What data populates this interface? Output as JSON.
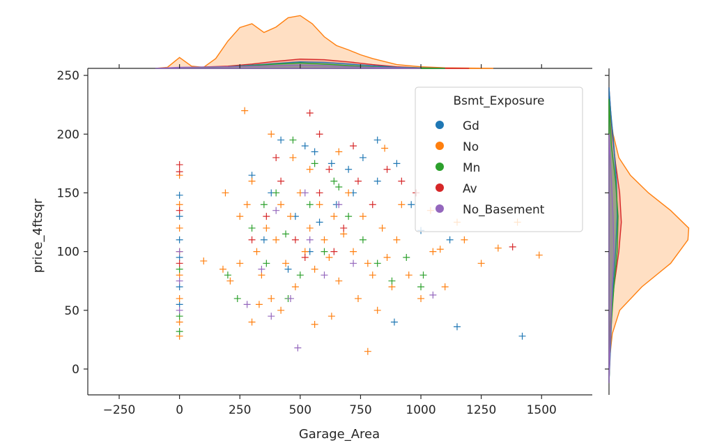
{
  "chart_data": {
    "type": "scatter",
    "subtype": "jointplot",
    "xlabel": "Garage_Area",
    "ylabel": "price_4ftsqr",
    "xlim": [
      -380,
      1710
    ],
    "ylim": [
      -22,
      256
    ],
    "x_ticks": [
      -250,
      0,
      250,
      500,
      750,
      1000,
      1250,
      1500
    ],
    "y_ticks": [
      0,
      50,
      100,
      150,
      200,
      250
    ],
    "marker": "+",
    "grid": false,
    "legend": {
      "title": "Bsmt_Exposure",
      "placement": "upper-right",
      "entries": [
        "Gd",
        "No",
        "Mn",
        "Av",
        "No_Basement"
      ]
    },
    "series": [
      {
        "name": "Gd",
        "color": "#1f77b4",
        "points": [
          [
            0,
            148
          ],
          [
            0,
            130
          ],
          [
            0,
            110
          ],
          [
            0,
            95
          ],
          [
            0,
            70
          ],
          [
            0,
            55
          ],
          [
            420,
            195
          ],
          [
            520,
            190
          ],
          [
            560,
            185
          ],
          [
            630,
            175
          ],
          [
            700,
            170
          ],
          [
            760,
            180
          ],
          [
            820,
            195
          ],
          [
            900,
            175
          ],
          [
            960,
            140
          ],
          [
            1000,
            118
          ],
          [
            1120,
            110
          ],
          [
            1150,
            36
          ],
          [
            1420,
            28
          ],
          [
            890,
            40
          ],
          [
            580,
            125
          ],
          [
            480,
            130
          ],
          [
            380,
            150
          ],
          [
            300,
            165
          ],
          [
            650,
            140
          ],
          [
            720,
            150
          ],
          [
            820,
            160
          ],
          [
            540,
            100
          ],
          [
            450,
            85
          ],
          [
            350,
            110
          ]
        ]
      },
      {
        "name": "No",
        "color": "#ff7f0e",
        "points": [
          [
            0,
            28
          ],
          [
            0,
            40
          ],
          [
            0,
            60
          ],
          [
            0,
            80
          ],
          [
            0,
            100
          ],
          [
            0,
            120
          ],
          [
            0,
            140
          ],
          [
            0,
            165
          ],
          [
            100,
            92
          ],
          [
            190,
            150
          ],
          [
            210,
            75
          ],
          [
            250,
            130
          ],
          [
            270,
            220
          ],
          [
            280,
            140
          ],
          [
            300,
            160
          ],
          [
            320,
            100
          ],
          [
            340,
            80
          ],
          [
            360,
            120
          ],
          [
            380,
            60
          ],
          [
            400,
            110
          ],
          [
            420,
            140
          ],
          [
            440,
            90
          ],
          [
            460,
            130
          ],
          [
            480,
            70
          ],
          [
            500,
            150
          ],
          [
            520,
            100
          ],
          [
            540,
            120
          ],
          [
            560,
            85
          ],
          [
            580,
            140
          ],
          [
            600,
            110
          ],
          [
            620,
            95
          ],
          [
            640,
            130
          ],
          [
            660,
            75
          ],
          [
            680,
            115
          ],
          [
            700,
            150
          ],
          [
            720,
            100
          ],
          [
            740,
            60
          ],
          [
            760,
            130
          ],
          [
            780,
            90
          ],
          [
            800,
            80
          ],
          [
            820,
            50
          ],
          [
            840,
            120
          ],
          [
            860,
            95
          ],
          [
            880,
            70
          ],
          [
            900,
            110
          ],
          [
            920,
            140
          ],
          [
            950,
            80
          ],
          [
            1000,
            60
          ],
          [
            1050,
            100
          ],
          [
            1100,
            70
          ],
          [
            1150,
            125
          ],
          [
            1180,
            110
          ],
          [
            1250,
            90
          ],
          [
            1320,
            103
          ],
          [
            1400,
            125
          ],
          [
            1490,
            97
          ],
          [
            780,
            15
          ],
          [
            560,
            38
          ],
          [
            540,
            170
          ],
          [
            470,
            180
          ],
          [
            380,
            200
          ],
          [
            660,
            185
          ],
          [
            850,
            188
          ],
          [
            1040,
            135
          ],
          [
            1080,
            102
          ],
          [
            300,
            40
          ],
          [
            420,
            50
          ],
          [
            630,
            45
          ],
          [
            250,
            90
          ],
          [
            180,
            85
          ],
          [
            330,
            55
          ]
        ]
      },
      {
        "name": "Mn",
        "color": "#2ca02c",
        "points": [
          [
            0,
            32
          ],
          [
            0,
            45
          ],
          [
            0,
            85
          ],
          [
            240,
            60
          ],
          [
            300,
            120
          ],
          [
            360,
            90
          ],
          [
            400,
            150
          ],
          [
            440,
            115
          ],
          [
            500,
            80
          ],
          [
            540,
            140
          ],
          [
            600,
            100
          ],
          [
            640,
            160
          ],
          [
            700,
            130
          ],
          [
            760,
            110
          ],
          [
            820,
            90
          ],
          [
            880,
            75
          ],
          [
            940,
            95
          ],
          [
            1000,
            70
          ],
          [
            1010,
            80
          ],
          [
            470,
            195
          ],
          [
            560,
            175
          ],
          [
            660,
            155
          ],
          [
            200,
            80
          ],
          [
            350,
            140
          ],
          [
            450,
            60
          ]
        ]
      },
      {
        "name": "Av",
        "color": "#d62728",
        "points": [
          [
            0,
            174
          ],
          [
            0,
            168
          ],
          [
            0,
            135
          ],
          [
            0,
            90
          ],
          [
            360,
            130
          ],
          [
            420,
            160
          ],
          [
            480,
            110
          ],
          [
            540,
            218
          ],
          [
            580,
            150
          ],
          [
            620,
            170
          ],
          [
            680,
            120
          ],
          [
            740,
            160
          ],
          [
            800,
            140
          ],
          [
            860,
            170
          ],
          [
            920,
            160
          ],
          [
            980,
            150
          ],
          [
            1380,
            104
          ],
          [
            520,
            95
          ],
          [
            640,
            100
          ],
          [
            720,
            190
          ],
          [
            300,
            110
          ],
          [
            400,
            180
          ],
          [
            580,
            200
          ]
        ]
      },
      {
        "name": "No_Basement",
        "color": "#9467bd",
        "points": [
          [
            0,
            50
          ],
          [
            0,
            75
          ],
          [
            0,
            100
          ],
          [
            280,
            55
          ],
          [
            340,
            85
          ],
          [
            400,
            135
          ],
          [
            460,
            60
          ],
          [
            490,
            18
          ],
          [
            540,
            110
          ],
          [
            600,
            80
          ],
          [
            660,
            140
          ],
          [
            720,
            90
          ],
          [
            1050,
            63
          ],
          [
            380,
            45
          ],
          [
            520,
            150
          ]
        ]
      }
    ],
    "top_marginal": {
      "type": "kde",
      "orientation": "x",
      "series": [
        {
          "name": "No",
          "color": "#ff7f0e",
          "points": [
            [
              -100,
              0
            ],
            [
              -50,
              0.02
            ],
            [
              0,
              0.2
            ],
            [
              50,
              0.04
            ],
            [
              100,
              0.02
            ],
            [
              150,
              0.18
            ],
            [
              200,
              0.5
            ],
            [
              250,
              0.75
            ],
            [
              300,
              0.82
            ],
            [
              350,
              0.66
            ],
            [
              400,
              0.76
            ],
            [
              450,
              0.93
            ],
            [
              500,
              0.97
            ],
            [
              550,
              0.82
            ],
            [
              600,
              0.58
            ],
            [
              650,
              0.42
            ],
            [
              700,
              0.34
            ],
            [
              750,
              0.25
            ],
            [
              800,
              0.18
            ],
            [
              900,
              0.07
            ],
            [
              1000,
              0.03
            ],
            [
              1100,
              0.01
            ],
            [
              1300,
              0
            ]
          ]
        },
        {
          "name": "Av",
          "color": "#d62728",
          "points": [
            [
              -100,
              0
            ],
            [
              0,
              0.01
            ],
            [
              200,
              0.04
            ],
            [
              300,
              0.08
            ],
            [
              400,
              0.13
            ],
            [
              500,
              0.17
            ],
            [
              600,
              0.16
            ],
            [
              700,
              0.12
            ],
            [
              800,
              0.07
            ],
            [
              900,
              0.03
            ],
            [
              1000,
              0.01
            ],
            [
              1200,
              0
            ]
          ]
        },
        {
          "name": "Gd",
          "color": "#1f77b4",
          "points": [
            [
              -100,
              0
            ],
            [
              0,
              0.01
            ],
            [
              200,
              0.03
            ],
            [
              300,
              0.06
            ],
            [
              400,
              0.09
            ],
            [
              500,
              0.12
            ],
            [
              600,
              0.11
            ],
            [
              700,
              0.08
            ],
            [
              800,
              0.05
            ],
            [
              900,
              0.02
            ],
            [
              1100,
              0
            ]
          ]
        },
        {
          "name": "Mn",
          "color": "#2ca02c",
          "points": [
            [
              -100,
              0
            ],
            [
              0,
              0.01
            ],
            [
              200,
              0.03
            ],
            [
              300,
              0.05
            ],
            [
              400,
              0.08
            ],
            [
              500,
              0.1
            ],
            [
              600,
              0.08
            ],
            [
              700,
              0.05
            ],
            [
              800,
              0.03
            ],
            [
              900,
              0.01
            ],
            [
              1100,
              0
            ]
          ]
        },
        {
          "name": "No_Basement",
          "color": "#9467bd",
          "points": [
            [
              -100,
              0
            ],
            [
              0,
              0.02
            ],
            [
              200,
              0.03
            ],
            [
              300,
              0.04
            ],
            [
              400,
              0.05
            ],
            [
              500,
              0.06
            ],
            [
              600,
              0.05
            ],
            [
              700,
              0.03
            ],
            [
              800,
              0.02
            ],
            [
              1000,
              0
            ]
          ]
        }
      ]
    },
    "right_marginal": {
      "type": "kde",
      "orientation": "y",
      "series": [
        {
          "name": "No",
          "color": "#ff7f0e",
          "points": [
            [
              -12,
              0
            ],
            [
              10,
              0.01
            ],
            [
              30,
              0.04
            ],
            [
              50,
              0.13
            ],
            [
              70,
              0.4
            ],
            [
              90,
              0.75
            ],
            [
              110,
              0.96
            ],
            [
              120,
              0.97
            ],
            [
              135,
              0.75
            ],
            [
              150,
              0.48
            ],
            [
              165,
              0.26
            ],
            [
              180,
              0.12
            ],
            [
              200,
              0.05
            ],
            [
              220,
              0.01
            ],
            [
              240,
              0
            ]
          ]
        },
        {
          "name": "Av",
          "color": "#d62728",
          "points": [
            [
              -12,
              0
            ],
            [
              40,
              0.02
            ],
            [
              70,
              0.06
            ],
            [
              100,
              0.12
            ],
            [
              125,
              0.15
            ],
            [
              150,
              0.13
            ],
            [
              175,
              0.08
            ],
            [
              200,
              0.04
            ],
            [
              230,
              0.01
            ],
            [
              240,
              0
            ]
          ]
        },
        {
          "name": "Gd",
          "color": "#1f77b4",
          "points": [
            [
              -12,
              0
            ],
            [
              20,
              0.02
            ],
            [
              60,
              0.04
            ],
            [
              100,
              0.08
            ],
            [
              130,
              0.1
            ],
            [
              160,
              0.09
            ],
            [
              190,
              0.06
            ],
            [
              220,
              0.02
            ],
            [
              240,
              0
            ]
          ]
        },
        {
          "name": "Mn",
          "color": "#2ca02c",
          "points": [
            [
              -12,
              0
            ],
            [
              30,
              0.02
            ],
            [
              70,
              0.06
            ],
            [
              100,
              0.1
            ],
            [
              130,
              0.11
            ],
            [
              160,
              0.08
            ],
            [
              190,
              0.03
            ],
            [
              230,
              0
            ]
          ]
        },
        {
          "name": "No_Basement",
          "color": "#9467bd",
          "points": [
            [
              -12,
              0
            ],
            [
              30,
              0.02
            ],
            [
              70,
              0.04
            ],
            [
              100,
              0.06
            ],
            [
              130,
              0.05
            ],
            [
              160,
              0.03
            ],
            [
              200,
              0
            ]
          ]
        }
      ]
    }
  }
}
